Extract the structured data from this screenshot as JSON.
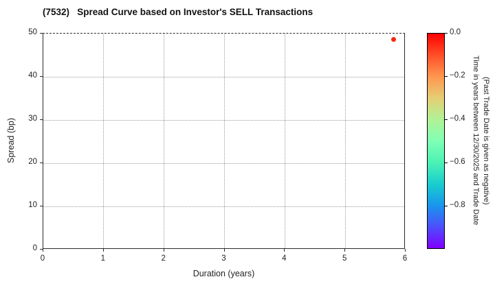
{
  "chart_data": {
    "type": "scatter",
    "title": "(7532)   Spread Curve based on Investor's SELL Transactions",
    "xlabel": "Duration (years)",
    "ylabel": "Spread (bp)",
    "xlim": [
      0,
      6
    ],
    "ylim": [
      0,
      50
    ],
    "xticks": [
      0,
      1,
      2,
      3,
      4,
      5,
      6
    ],
    "yticks": [
      0,
      10,
      20,
      30,
      40,
      50
    ],
    "grid": true,
    "grid_style": "dotted",
    "legend": "none",
    "points": [
      {
        "x": 5.8,
        "y": 48.7,
        "time_years": 0.0,
        "color": "#f5290f"
      }
    ],
    "colorbar": {
      "label_line1": "Time in years between 12/30/2025 and Trade Date",
      "label_line2": "(Past Trade Date is given as negative)",
      "max": 0.0,
      "min": -1.0,
      "ticks": [
        {
          "label": "0.0",
          "value": 0.0
        },
        {
          "label": "−0.2",
          "value": -0.2
        },
        {
          "label": "−0.4",
          "value": -0.4
        },
        {
          "label": "−0.6",
          "value": -0.6
        },
        {
          "label": "−0.8",
          "value": -0.8
        }
      ],
      "colormap": "rainbow (reversed: red at 0.0 top, violet at −1.0 bottom)",
      "gradient": [
        "#ff0000",
        "#ff4f28",
        "#ff964f",
        "#e5ce74",
        "#b2f296",
        "#80ffb4",
        "#4cf2b4",
        "#19cece",
        "#1996ec",
        "#4c4ffc",
        "#8000ff"
      ]
    }
  }
}
